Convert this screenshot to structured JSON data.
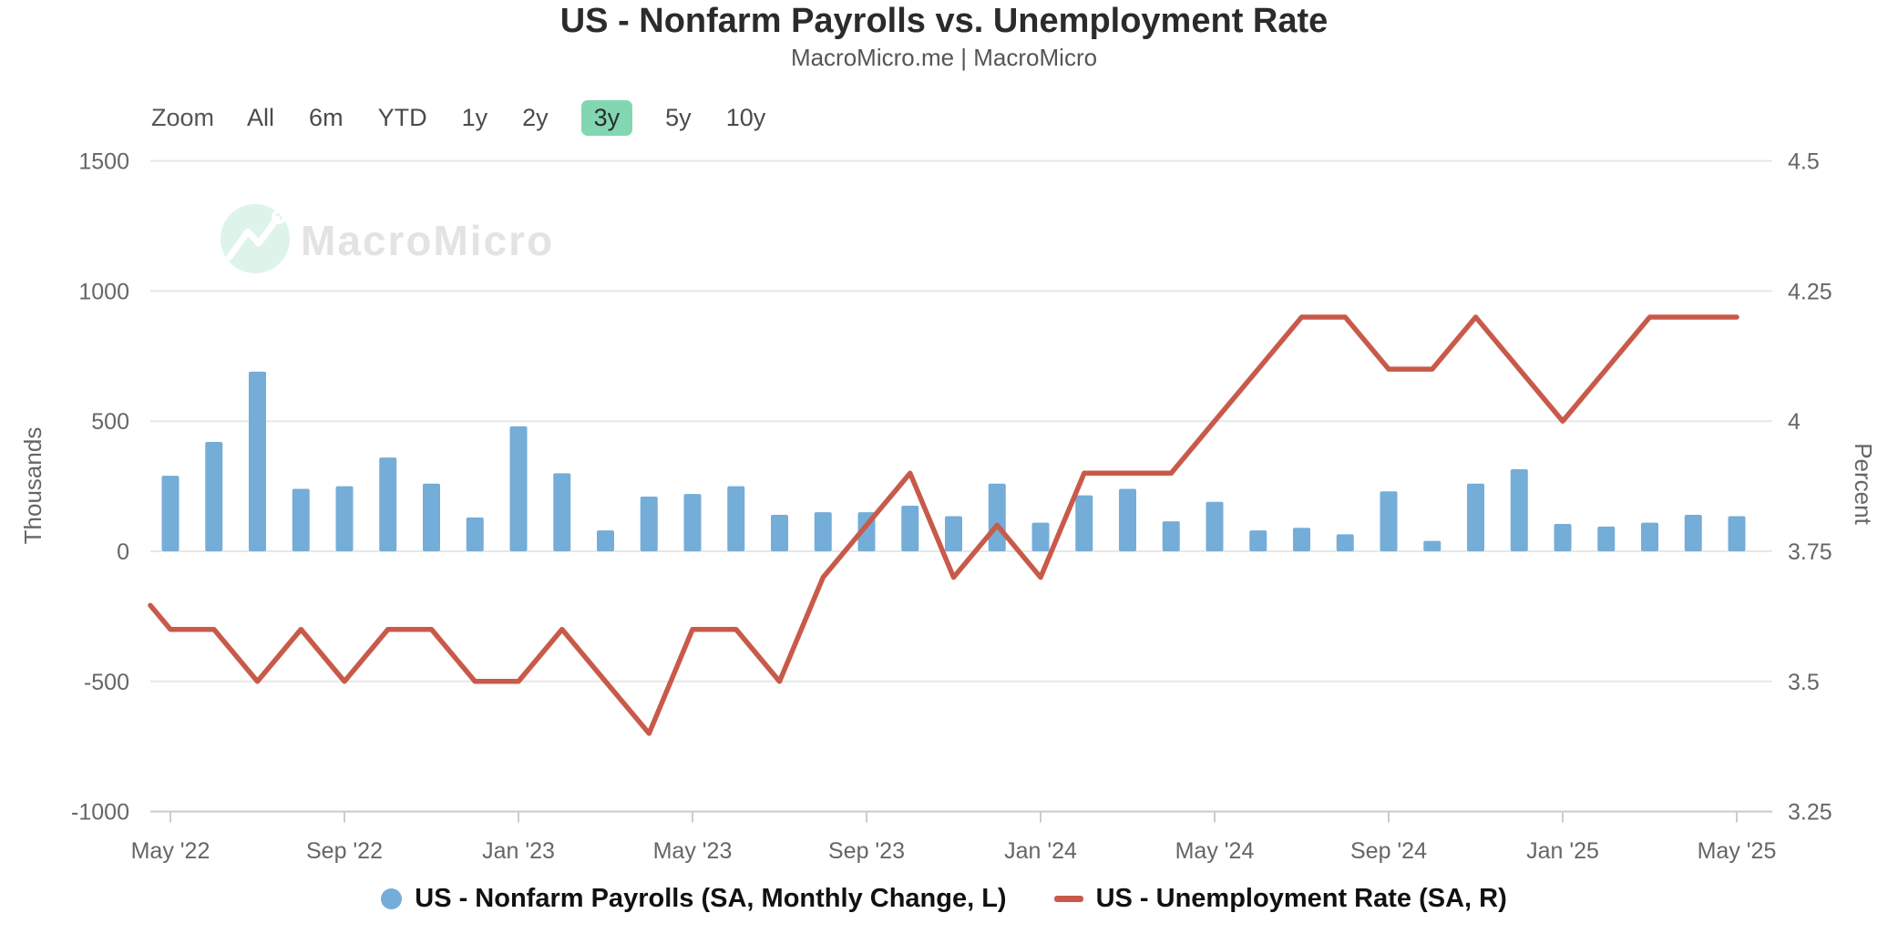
{
  "header": {
    "title": "US - Nonfarm Payrolls vs. Unemployment Rate",
    "subtitle": "MacroMicro.me | MacroMicro"
  },
  "toolbar": {
    "zoom_label": "Zoom",
    "ranges": [
      "All",
      "6m",
      "YTD",
      "1y",
      "2y",
      "3y",
      "5y",
      "10y"
    ],
    "active_range": "3y"
  },
  "watermark": {
    "text": "MacroMicro"
  },
  "colors": {
    "bar": "#74add8",
    "line": "#c85a4a",
    "grid": "#e7e7e7",
    "axis_line": "#cccccc",
    "tick_text": "#666666",
    "active_range_bg": "#82d6b1",
    "watermark_circle": "#def4ea",
    "watermark_text": "#e3e3e3"
  },
  "chart_data": {
    "type": "bar",
    "subtype": "bar+line dual-axis",
    "months": [
      "May 2022",
      "Jun 2022",
      "Jul 2022",
      "Aug 2022",
      "Sep 2022",
      "Oct 2022",
      "Nov 2022",
      "Dec 2022",
      "Jan 2023",
      "Feb 2023",
      "Mar 2023",
      "Apr 2023",
      "May 2023",
      "Jun 2023",
      "Jul 2023",
      "Aug 2023",
      "Sep 2023",
      "Oct 2023",
      "Nov 2023",
      "Dec 2023",
      "Jan 2024",
      "Feb 2024",
      "Mar 2024",
      "Apr 2024",
      "May 2024",
      "Jun 2024",
      "Jul 2024",
      "Aug 2024",
      "Sep 2024",
      "Oct 2024",
      "Nov 2024",
      "Dec 2024",
      "Jan 2025",
      "Feb 2025",
      "Mar 2025",
      "Apr 2025",
      "May 2025"
    ],
    "x_tick_labels": [
      "May '22",
      "Sep '22",
      "Jan '23",
      "May '23",
      "Sep '23",
      "Jan '24",
      "May '24",
      "Sep '24",
      "Jan '25",
      "May '25"
    ],
    "x_tick_every": 4,
    "series": [
      {
        "name": "US - Nonfarm Payrolls (SA, Monthly Change, L)",
        "type": "column",
        "axis": "left",
        "color": "#74add8",
        "values": [
          290,
          420,
          690,
          240,
          250,
          360,
          260,
          130,
          480,
          300,
          80,
          210,
          220,
          250,
          140,
          150,
          150,
          175,
          135,
          260,
          110,
          215,
          240,
          115,
          190,
          80,
          90,
          65,
          230,
          40,
          260,
          315,
          105,
          95,
          110,
          140,
          135
        ]
      },
      {
        "name": "US - Unemployment Rate (SA, R)",
        "type": "line",
        "axis": "right",
        "color": "#c85a4a",
        "values": [
          3.6,
          3.6,
          3.5,
          3.6,
          3.5,
          3.6,
          3.6,
          3.5,
          3.5,
          3.6,
          3.5,
          3.4,
          3.6,
          3.6,
          3.5,
          3.7,
          3.8,
          3.9,
          3.7,
          3.8,
          3.7,
          3.9,
          3.9,
          3.9,
          4.0,
          4.1,
          4.2,
          4.2,
          4.1,
          4.1,
          4.2,
          4.1,
          4.0,
          4.1,
          4.2,
          4.2,
          4.2
        ],
        "pre_point_value": 3.7
      }
    ],
    "left_axis": {
      "title": "Thousands",
      "ticks": [
        1500,
        1000,
        500,
        0,
        -500,
        -1000
      ],
      "range": [
        -1000,
        1500
      ]
    },
    "right_axis": {
      "title": "Percent",
      "ticks": [
        4.5,
        4.25,
        4,
        3.75,
        3.5,
        3.25
      ],
      "range": [
        3.25,
        4.5
      ]
    },
    "grid": true,
    "legend_position": "bottom"
  }
}
